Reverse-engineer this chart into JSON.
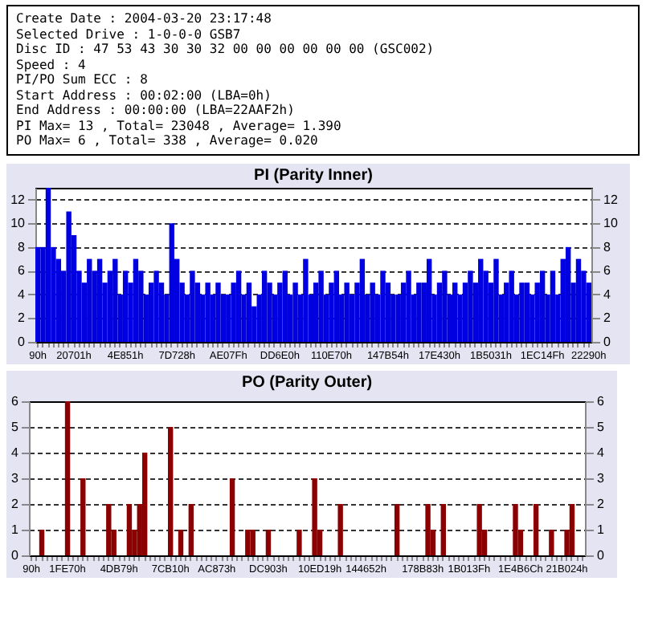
{
  "chart_data": [
    {
      "type": "other",
      "annotations": [
        "Create Date : 2004-03-20 23:17:48",
        "Selected Drive : 1-0-0-0 GSB7",
        "Disc ID : 47 53 43 30 30 32 00 00 00 00 00 00 (GSC002)",
        "Speed : 4",
        "PI/PO Sum ECC : 8",
        "Start Address : 00:02:00 (LBA=0h)",
        "End Address : 00:00:00 (LBA=22AAF2h)",
        "PI Max= 13 , Total= 23048 , Average= 1.390",
        "PO Max= 6 , Total= 338 , Average= 0.020"
      ]
    },
    {
      "type": "bar",
      "title": "PI (Parity Inner)",
      "grid": "y",
      "ylim": [
        0,
        13
      ],
      "yticks": [
        0,
        2,
        4,
        6,
        8,
        10,
        12
      ],
      "y2lim": [
        0,
        13
      ],
      "y2ticks": [
        0,
        2,
        4,
        6,
        8,
        10,
        12
      ],
      "categories": [
        "90h",
        null,
        null,
        null,
        null,
        null,
        null,
        "20701h",
        null,
        null,
        null,
        null,
        null,
        null,
        null,
        null,
        null,
        "4E851h",
        null,
        null,
        null,
        null,
        null,
        null,
        null,
        null,
        null,
        "7D728h",
        null,
        null,
        null,
        null,
        null,
        null,
        null,
        null,
        null,
        "AE07Fh",
        null,
        null,
        null,
        null,
        null,
        null,
        null,
        null,
        null,
        "DD6E0h",
        null,
        null,
        null,
        null,
        null,
        null,
        null,
        null,
        null,
        "110E70h",
        null,
        null,
        null,
        null,
        null,
        null,
        null,
        null,
        null,
        null,
        "147B54h",
        null,
        null,
        null,
        null,
        null,
        null,
        null,
        null,
        null,
        "17E430h",
        null,
        null,
        null,
        null,
        null,
        null,
        null,
        null,
        null,
        "1B5031h",
        null,
        null,
        null,
        null,
        null,
        null,
        null,
        null,
        null,
        "1EC14Fh",
        null,
        null,
        null,
        null,
        null,
        null,
        null,
        null,
        "22290h"
      ],
      "series": [
        {
          "color": "#0000e0",
          "values": [
            8,
            8,
            13,
            8,
            7,
            6,
            11,
            9,
            6,
            5,
            7,
            6,
            7,
            5,
            6,
            7,
            4,
            6,
            5,
            7,
            6,
            4,
            5,
            6,
            5,
            4,
            10,
            7,
            5,
            4,
            6,
            5,
            4,
            5,
            4,
            5,
            4,
            4,
            5,
            6,
            4,
            5,
            3,
            4,
            6,
            5,
            4,
            5,
            6,
            4,
            5,
            4,
            7,
            4,
            5,
            6,
            4,
            5,
            6,
            4,
            5,
            4,
            5,
            7,
            4,
            5,
            4,
            6,
            5,
            4,
            4,
            5,
            6,
            4,
            5,
            5,
            7,
            4,
            5,
            6,
            4,
            5,
            4,
            5,
            6,
            5,
            7,
            6,
            5,
            7,
            4,
            5,
            6,
            4,
            5,
            5,
            4,
            5,
            6,
            4,
            6,
            4,
            7,
            8,
            5,
            7,
            6,
            5
          ]
        }
      ]
    },
    {
      "type": "bar",
      "title": "PO (Parity Outer)",
      "grid": "y",
      "ylim": [
        0,
        6
      ],
      "yticks": [
        0,
        1,
        2,
        3,
        4,
        5,
        6
      ],
      "y2lim": [
        0,
        6
      ],
      "y2ticks": [
        0,
        1,
        2,
        3,
        4,
        5,
        6
      ],
      "categories": [
        "90h",
        null,
        null,
        null,
        null,
        null,
        null,
        "1FE70h",
        null,
        null,
        null,
        null,
        null,
        null,
        null,
        null,
        null,
        "4DB79h",
        null,
        null,
        null,
        null,
        null,
        null,
        null,
        null,
        null,
        "7CB10h",
        null,
        null,
        null,
        null,
        null,
        null,
        null,
        null,
        "AC873h",
        null,
        null,
        null,
        null,
        null,
        null,
        null,
        null,
        null,
        "DC903h",
        null,
        null,
        null,
        null,
        null,
        null,
        null,
        null,
        null,
        "10ED19h",
        null,
        null,
        null,
        null,
        null,
        null,
        null,
        null,
        "144652h",
        null,
        null,
        null,
        null,
        null,
        null,
        null,
        null,
        null,
        null,
        "178B83h",
        null,
        null,
        null,
        null,
        null,
        null,
        null,
        null,
        "1B013Fh",
        null,
        null,
        null,
        null,
        null,
        null,
        null,
        null,
        null,
        "1E4B6Ch",
        null,
        null,
        null,
        null,
        null,
        null,
        null,
        null,
        "21B024h",
        null,
        null,
        null
      ],
      "series": [
        {
          "color": "#8b0000",
          "values": [
            0,
            0,
            1,
            0,
            0,
            0,
            0,
            6,
            0,
            0,
            3,
            0,
            0,
            0,
            0,
            2,
            1,
            0,
            0,
            2,
            1,
            2,
            4,
            0,
            0,
            0,
            0,
            5,
            0,
            1,
            0,
            2,
            0,
            0,
            0,
            0,
            0,
            0,
            0,
            3,
            0,
            0,
            1,
            1,
            0,
            0,
            1,
            0,
            0,
            0,
            0,
            0,
            1,
            0,
            0,
            3,
            1,
            0,
            0,
            0,
            2,
            0,
            0,
            0,
            0,
            0,
            0,
            0,
            0,
            0,
            0,
            2,
            0,
            0,
            0,
            0,
            0,
            2,
            1,
            0,
            2,
            0,
            0,
            0,
            0,
            0,
            0,
            2,
            1,
            0,
            0,
            0,
            0,
            0,
            2,
            1,
            0,
            0,
            2,
            0,
            0,
            1,
            0,
            0,
            1,
            2,
            0,
            0
          ]
        }
      ]
    }
  ]
}
